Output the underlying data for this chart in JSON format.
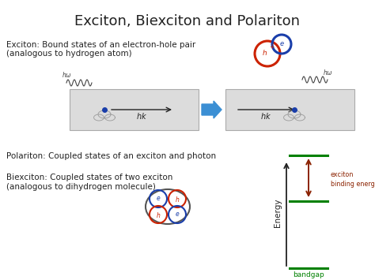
{
  "title": "Exciton, Biexciton and Polariton",
  "title_fontsize": 13,
  "bg_color": "#ffffff",
  "exciton_text_line1": "Exciton: Bound states of an electron-hole pair",
  "exciton_text_line2": "(analogous to hydrogen atom)",
  "polariton_text": "Polariton: Coupled states of an exciton and photon",
  "biexciton_text_line1": "Biexciton: Coupled states of two exciton",
  "biexciton_text_line2": "(analogous to dihydrogen molecule)",
  "text_fontsize": 7.5,
  "box_color": "#dcdcdc",
  "arrow_color": "#3b8fd4",
  "energy_line_color": "#008000",
  "binding_energy_color": "#8b2200",
  "bandgap_color": "#008000",
  "hole_color": "#cc2200",
  "electron_color": "#1a3eaa"
}
